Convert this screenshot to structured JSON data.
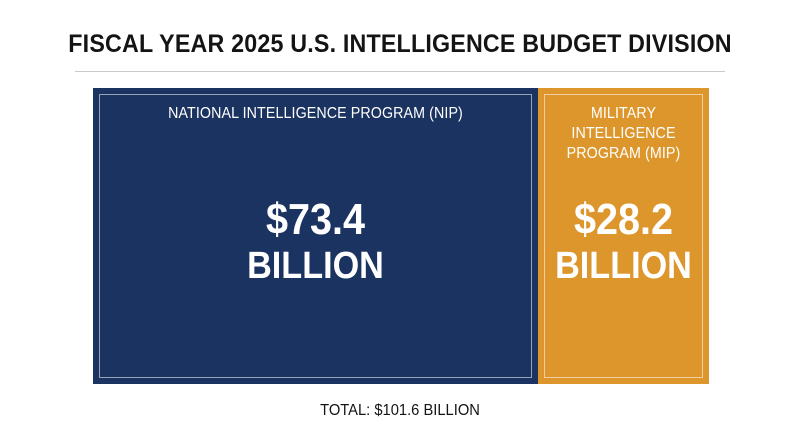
{
  "title": "FISCAL YEAR 2025 U.S. INTELLIGENCE BUDGET DIVISION",
  "total_label": "TOTAL: $101.6 BILLION",
  "colors": {
    "nip": "#1b3360",
    "mip": "#dd962c"
  },
  "chart_data": {
    "type": "treemap",
    "title": "FISCAL YEAR 2025 U.S. INTELLIGENCE BUDGET DIVISION",
    "unit": "BILLION",
    "total": 101.6,
    "segments": [
      {
        "label": "NATIONAL INTELLIGENCE PROGRAM (NIP)",
        "value": 73.4,
        "display_value": "$73.4",
        "display_unit": "BILLION",
        "color": "#1b3360"
      },
      {
        "label": "MILITARY INTELLIGENCE PROGRAM (MIP)",
        "value": 28.2,
        "display_value": "$28.2",
        "display_unit": "BILLION",
        "color": "#dd962c"
      }
    ]
  }
}
